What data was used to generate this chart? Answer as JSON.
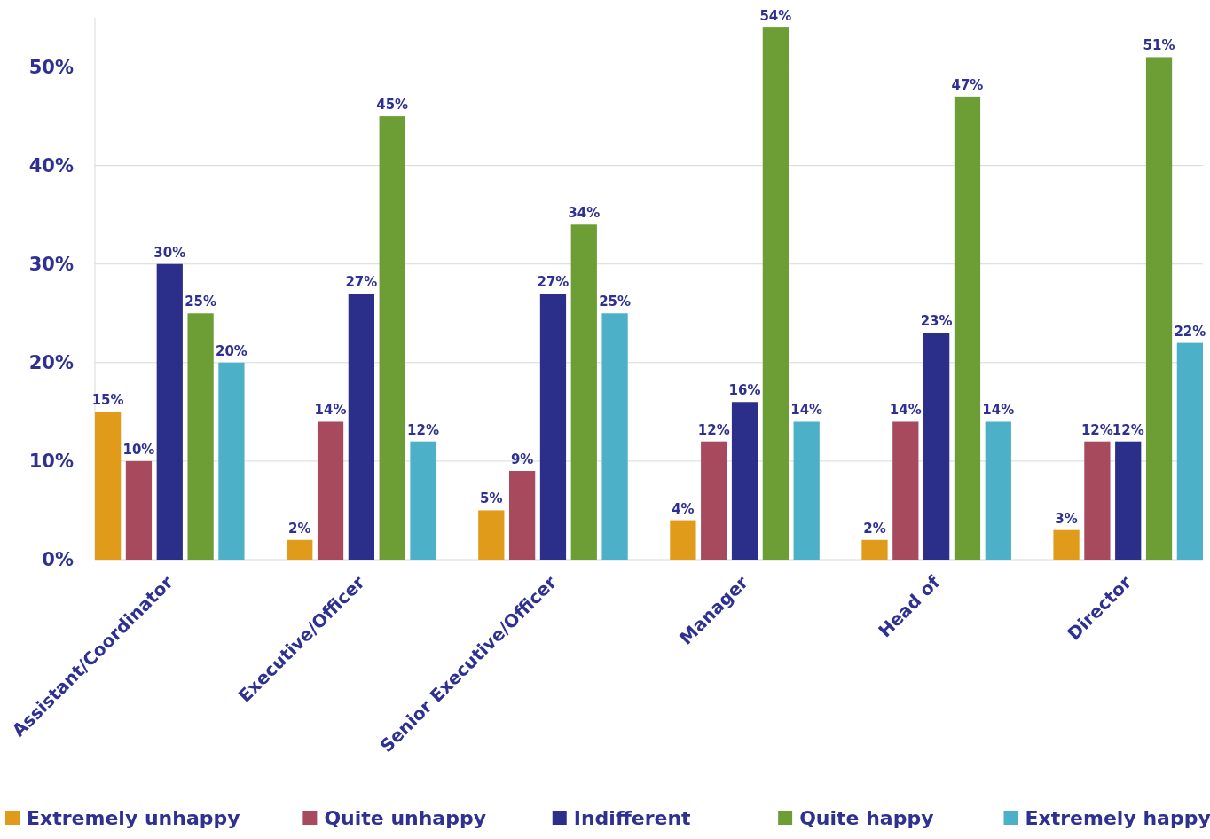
{
  "chart_data": {
    "type": "bar",
    "categories": [
      "Assistant/Coordinator",
      "Executive/Officer",
      "Senior Executive/Officer",
      "Manager",
      "Head of",
      "Director"
    ],
    "series": [
      {
        "name": "Extremely unhappy",
        "color": "#e09b1a",
        "values": [
          15,
          2,
          5,
          4,
          2,
          3
        ],
        "value_labels": [
          "15%",
          "2%",
          "5%",
          "4%",
          "2%",
          "3%"
        ]
      },
      {
        "name": "Quite unhappy",
        "color": "#a84a5e",
        "values": [
          10,
          14,
          9,
          12,
          14,
          12
        ],
        "value_labels": [
          "10%",
          "14%",
          "9%",
          "12%",
          "14%",
          "12%"
        ]
      },
      {
        "name": "Indifferent",
        "color": "#2b2f8a",
        "values": [
          30,
          27,
          27,
          16,
          23,
          12
        ],
        "value_labels": [
          "30%",
          "27%",
          "27%",
          "16%",
          "23%",
          "12%"
        ]
      },
      {
        "name": "Quite happy",
        "color": "#6d9e35",
        "values": [
          25,
          45,
          34,
          54,
          47,
          51
        ],
        "value_labels": [
          "25%",
          "45%",
          "34%",
          "54%",
          "47%",
          "51%"
        ]
      },
      {
        "name": "Extremely happy",
        "color": "#4cb0c8",
        "values": [
          20,
          12,
          25,
          14,
          14,
          22
        ],
        "value_labels": [
          "20%",
          "12%",
          "25%",
          "14%",
          "14%",
          "22%"
        ]
      }
    ],
    "ylim": [
      0,
      55
    ],
    "yticks": [
      {
        "value": 0,
        "label": "0%"
      },
      {
        "value": 10,
        "label": "10%"
      },
      {
        "value": 20,
        "label": "20%"
      },
      {
        "value": 30,
        "label": "30%"
      },
      {
        "value": 40,
        "label": "40%"
      },
      {
        "value": 50,
        "label": "50%"
      }
    ],
    "grid": "y",
    "legend": "bottom"
  }
}
